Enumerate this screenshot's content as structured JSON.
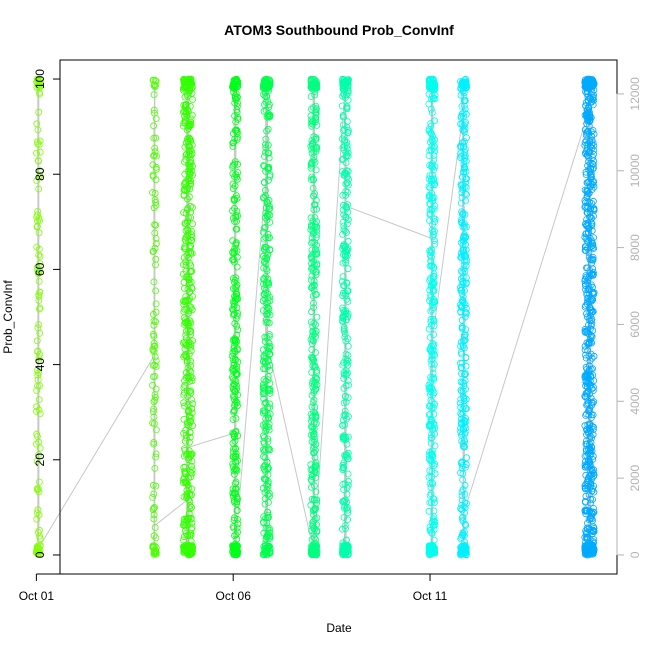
{
  "chart_data": {
    "type": "scatter",
    "title": "ATOM3 Southbound Prob_ConvInf",
    "xlabel": "Date",
    "ylabel": "Prob_ConvInf",
    "x_ticks": [
      "Oct 01",
      "Oct 06",
      "Oct 11"
    ],
    "xlim_days": [
      0.6,
      14.75
    ],
    "ylim": [
      -4,
      104
    ],
    "y_ticks": [
      0,
      20,
      40,
      60,
      80,
      100
    ],
    "y2_ticks": [
      0,
      2000,
      4000,
      6000,
      8000,
      10000,
      12000
    ],
    "y2_range": [
      0,
      12400
    ],
    "y2_color": "#b3b3b3",
    "connector_color": "#c8c8c8",
    "grid": false,
    "series": [
      {
        "day_offset": 0.0,
        "center_days": 0.05,
        "spread": 0.05,
        "color": "#80ff00",
        "points": 120,
        "counts": [
          0,
          220
        ]
      },
      {
        "day_offset": 3.0,
        "center_days": 3.0,
        "spread": 0.05,
        "color": "#4dff00",
        "points": 110,
        "counts": [
          1300,
          5500
        ]
      },
      {
        "day_offset": 3.8,
        "center_days": 3.85,
        "spread": 0.12,
        "color": "#33ff00",
        "points": 480,
        "counts": [
          5500,
          6400
        ]
      },
      {
        "day_offset": 5.0,
        "center_days": 5.05,
        "spread": 0.07,
        "color": "#00ff1a",
        "points": 320,
        "counts": [
          0,
          10900
        ]
      },
      {
        "day_offset": 5.8,
        "center_days": 5.85,
        "spread": 0.09,
        "color": "#00ff4d",
        "points": 360,
        "counts": [
          1600,
          3200
        ]
      },
      {
        "day_offset": 7.0,
        "center_days": 7.05,
        "spread": 0.08,
        "color": "#00ff80",
        "points": 360,
        "counts": [
          200,
          3800
        ]
      },
      {
        "day_offset": 7.8,
        "center_days": 7.85,
        "spread": 0.08,
        "color": "#00ffaa",
        "points": 320,
        "counts": [
          600,
          4000
        ]
      },
      {
        "day_offset": 10.0,
        "center_days": 10.05,
        "spread": 0.08,
        "color": "#00ffee",
        "points": 360,
        "counts": [
          0,
          8000
        ]
      },
      {
        "day_offset": 10.8,
        "center_days": 10.85,
        "spread": 0.08,
        "color": "#00f0ff",
        "points": 360,
        "counts": [
          600,
          7800
        ]
      },
      {
        "day_offset": 14.0,
        "center_days": 14.05,
        "spread": 0.12,
        "color": "#00aaff",
        "points": 700,
        "counts": [
          400,
          12000
        ]
      }
    ]
  }
}
